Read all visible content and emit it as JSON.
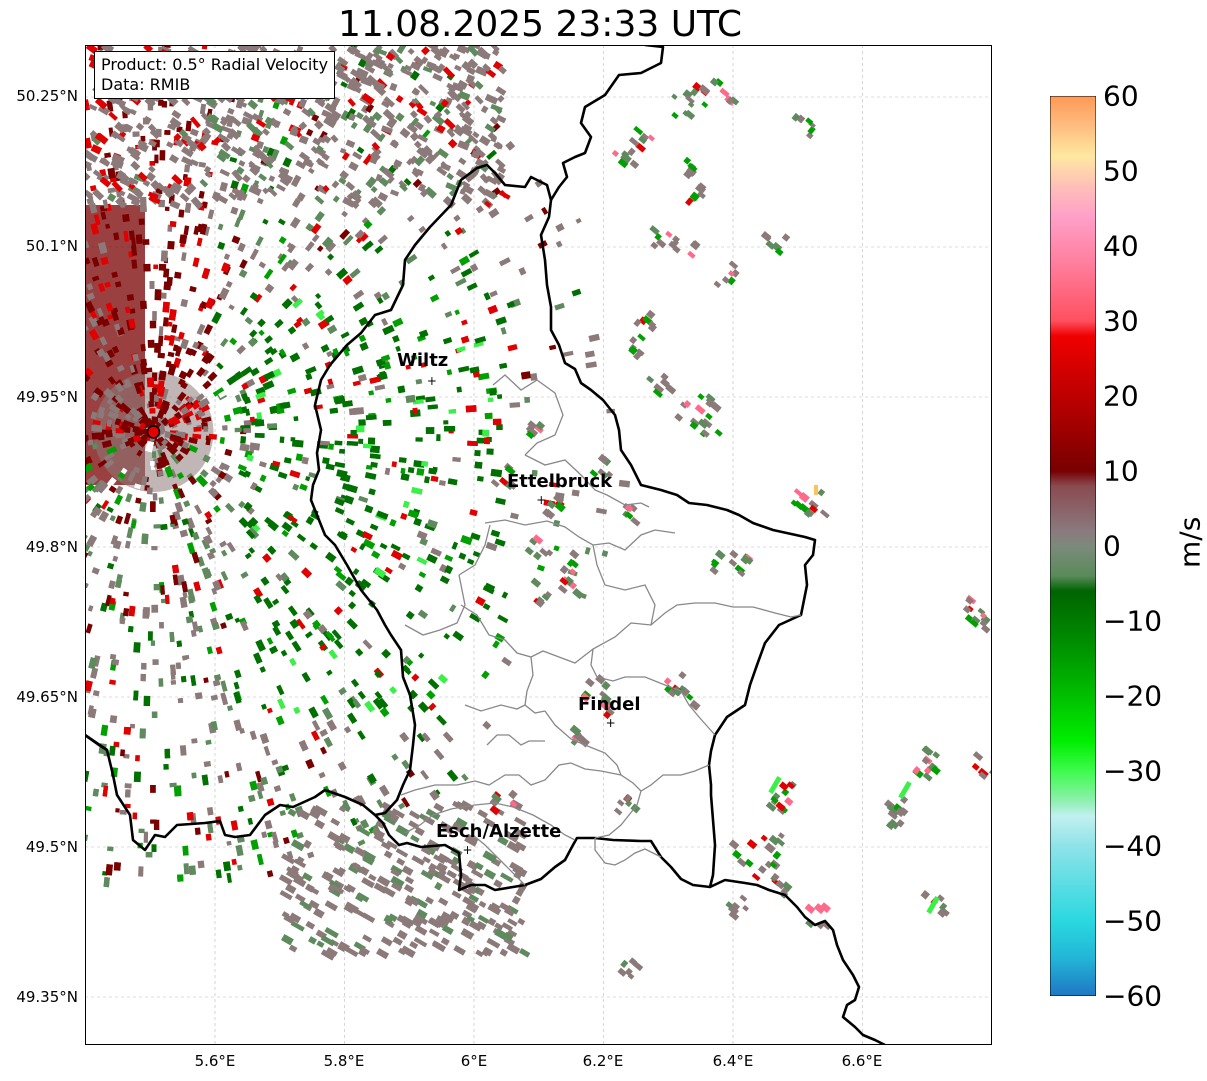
{
  "title": "11.08.2025 23:33 UTC",
  "info": {
    "product": "Product: 0.5° Radial Velocity",
    "data": "Data: RMIB"
  },
  "axes": {
    "lon_range": [
      5.4,
      6.8
    ],
    "lat_range": [
      49.3,
      50.3
    ],
    "lat_ticks": [
      "50.25°N",
      "50.1°N",
      "49.95°N",
      "49.8°N",
      "49.65°N",
      "49.5°N",
      "49.35°N"
    ],
    "lon_ticks": [
      "5.6°E",
      "5.8°E",
      "6°E",
      "6.2°E",
      "6.4°E",
      "6.6°E"
    ],
    "grid": true
  },
  "radar_site": {
    "lon": 5.505,
    "lat": 49.915,
    "color": "#e80000"
  },
  "cities": [
    {
      "name": "Wiltz",
      "lon": 5.935,
      "lat": 49.966
    },
    {
      "name": "Ettelbruck",
      "lon": 6.104,
      "lat": 49.847
    },
    {
      "name": "Findel",
      "lon": 6.211,
      "lat": 49.624
    },
    {
      "name": "Esch/Alzette",
      "lon": 5.99,
      "lat": 49.497
    }
  ],
  "colorbar": {
    "unit": "m/s",
    "min": -60,
    "max": 60,
    "ticks": [
      "60",
      "50",
      "40",
      "30",
      "20",
      "10",
      "0",
      "−10",
      "−20",
      "−30",
      "−40",
      "−50",
      "−60"
    ],
    "stops": [
      {
        "v": -60,
        "c": "#1f77c4"
      },
      {
        "v": -55,
        "c": "#22b5d6"
      },
      {
        "v": -50,
        "c": "#2ad8e0"
      },
      {
        "v": -40,
        "c": "#8ee3e8"
      },
      {
        "v": -36,
        "c": "#c2f0f0"
      },
      {
        "v": -34,
        "c": "#8ff0b0"
      },
      {
        "v": -30,
        "c": "#3dfb4d"
      },
      {
        "v": -26,
        "c": "#00ee00"
      },
      {
        "v": -18,
        "c": "#00b000"
      },
      {
        "v": -12,
        "c": "#008800"
      },
      {
        "v": -6,
        "c": "#006400"
      },
      {
        "v": -4,
        "c": "#5a8a5a"
      },
      {
        "v": 0,
        "c": "#7c8a7c"
      },
      {
        "v": 2,
        "c": "#8a7a7e"
      },
      {
        "v": 8,
        "c": "#8a4a50"
      },
      {
        "v": 10,
        "c": "#780000"
      },
      {
        "v": 18,
        "c": "#b00000"
      },
      {
        "v": 28,
        "c": "#f00000"
      },
      {
        "v": 30,
        "c": "#ff5060"
      },
      {
        "v": 38,
        "c": "#ff80a0"
      },
      {
        "v": 44,
        "c": "#ffa0c8"
      },
      {
        "v": 48,
        "c": "#ffc0b8"
      },
      {
        "v": 52,
        "c": "#ffe8a0"
      },
      {
        "v": 56,
        "c": "#ffbd80"
      },
      {
        "v": 60,
        "c": "#ff9955"
      }
    ]
  },
  "palette": {
    "gray_pink": "#8c7a7a",
    "gray_green": "#5e8a5e",
    "green_dark": "#007000",
    "green_mid": "#00a000",
    "green_light": "#3af046",
    "dark_red": "#7a0000",
    "red": "#e00000",
    "pink": "#ff6a8a",
    "cyan": "#8ee3e8",
    "orange": "#ffc060"
  }
}
